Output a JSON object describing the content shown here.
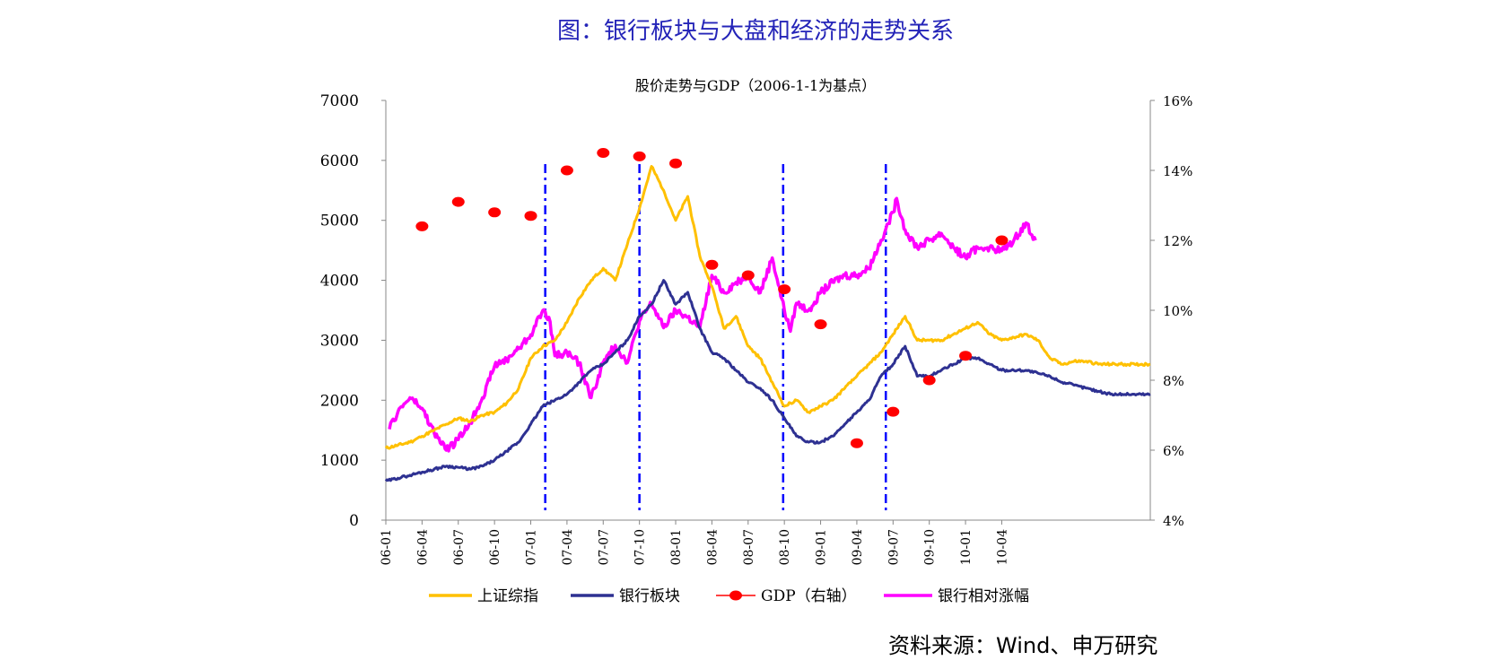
{
  "page": {
    "title": "图：银行板块与大盘和经济的走势关系",
    "source": "资料来源：Wind、申万研究"
  },
  "chart_data": {
    "type": "line",
    "title": "股价走势与GDP（2006-1-1为基点）",
    "y_left": {
      "min": 0,
      "max": 7000,
      "ticks": [
        "0",
        "1000",
        "2000",
        "3000",
        "4000",
        "5000",
        "6000",
        "7000"
      ]
    },
    "y_right": {
      "min": 4,
      "max": 16,
      "ticks": [
        "4%",
        "6%",
        "8%",
        "10%",
        "12%",
        "14%",
        "16%"
      ]
    },
    "x_range": [
      0,
      63.3
    ],
    "x_ticks": [
      {
        "i": 0,
        "label": "06-01"
      },
      {
        "i": 3,
        "label": "06-04"
      },
      {
        "i": 6,
        "label": "06-07"
      },
      {
        "i": 9,
        "label": "06-10"
      },
      {
        "i": 12,
        "label": "07-01"
      },
      {
        "i": 15,
        "label": "07-04"
      },
      {
        "i": 18,
        "label": "07-07"
      },
      {
        "i": 21,
        "label": "07-10"
      },
      {
        "i": 24,
        "label": "08-01"
      },
      {
        "i": 27,
        "label": "08-04"
      },
      {
        "i": 30,
        "label": "08-07"
      },
      {
        "i": 33,
        "label": "08-10"
      },
      {
        "i": 36,
        "label": "09-01"
      },
      {
        "i": 39,
        "label": "09-04"
      },
      {
        "i": 42,
        "label": "09-07"
      },
      {
        "i": 45,
        "label": "09-10"
      },
      {
        "i": 48,
        "label": "10-01"
      },
      {
        "i": 51,
        "label": "10-04"
      }
    ],
    "vlines": [
      13.2,
      21.0,
      32.9,
      41.4
    ],
    "colors": {
      "sh": "#FFC000",
      "bank": "#2E3192",
      "gdp": "#FF0000",
      "rel": "#FF00FF",
      "vline": "#0000FF"
    },
    "series": [
      {
        "key": "sh",
        "name": "上证综指",
        "axis": "left",
        "x": [
          0,
          1,
          2,
          3,
          4,
          5,
          6,
          7,
          8,
          9,
          10,
          11,
          12,
          13,
          14,
          15,
          16,
          17,
          18,
          19,
          20,
          21,
          22,
          23,
          24,
          25,
          26,
          27,
          28,
          29,
          30,
          31,
          32,
          33,
          34,
          35,
          36,
          37,
          38,
          39,
          40,
          41,
          42,
          43,
          44,
          45,
          46,
          47,
          48,
          49,
          50,
          51,
          52,
          53,
          54,
          55,
          56,
          57,
          58,
          59,
          60,
          61,
          62,
          63,
          63.3
        ],
        "values": [
          1200,
          1250,
          1300,
          1400,
          1500,
          1600,
          1700,
          1650,
          1750,
          1800,
          1950,
          2200,
          2700,
          2900,
          3000,
          3300,
          3700,
          4000,
          4200,
          4000,
          4600,
          5200,
          5900,
          5500,
          5000,
          5400,
          4400,
          3900,
          3200,
          3400,
          2900,
          2700,
          2300,
          1900,
          2000,
          1800,
          1900,
          2000,
          2200,
          2400,
          2600,
          2800,
          3100,
          3400,
          3000,
          3000,
          3000,
          3100,
          3200,
          3300,
          3100,
          3000,
          3050,
          3100,
          3000,
          2700,
          2600,
          2650,
          2650,
          2600,
          2600,
          2600,
          2600,
          2600,
          2600
        ]
      },
      {
        "key": "bank",
        "name": "银行板块",
        "axis": "left",
        "x": [
          0,
          1,
          2,
          3,
          4,
          5,
          6,
          7,
          8,
          9,
          10,
          11,
          12,
          13,
          14,
          15,
          16,
          17,
          18,
          19,
          20,
          21,
          22,
          23,
          24,
          25,
          26,
          27,
          28,
          29,
          30,
          31,
          32,
          33,
          34,
          35,
          36,
          37,
          38,
          39,
          40,
          41,
          42,
          43,
          44,
          45,
          46,
          47,
          48,
          49,
          50,
          51,
          52,
          53,
          54,
          55,
          56,
          57,
          58,
          59,
          60,
          61,
          62,
          63,
          63.3
        ],
        "values": [
          650,
          700,
          750,
          800,
          850,
          900,
          880,
          850,
          900,
          1000,
          1150,
          1300,
          1600,
          1900,
          2000,
          2100,
          2300,
          2500,
          2600,
          2800,
          3000,
          3400,
          3600,
          4000,
          3600,
          3800,
          3200,
          2800,
          2700,
          2500,
          2300,
          2200,
          2000,
          1700,
          1400,
          1300,
          1300,
          1400,
          1600,
          1800,
          2000,
          2400,
          2600,
          2900,
          2400,
          2400,
          2500,
          2600,
          2700,
          2700,
          2600,
          2500,
          2500,
          2500,
          2450,
          2400,
          2300,
          2250,
          2200,
          2150,
          2100,
          2100,
          2100,
          2100,
          2100
        ]
      },
      {
        "key": "rel",
        "name": "银行相对涨幅",
        "axis": "right",
        "x": [
          0.3,
          1,
          2,
          3,
          4,
          5,
          6,
          7,
          8,
          9,
          10,
          11,
          12,
          13,
          13.5,
          14,
          15,
          16,
          17,
          18,
          19,
          20,
          21,
          22,
          23,
          24,
          25,
          26,
          27,
          28,
          29,
          30,
          31,
          32,
          33,
          33.5,
          34,
          35,
          36,
          37,
          38,
          39,
          40,
          41,
          42,
          42.3,
          43,
          44,
          45,
          46,
          47,
          48,
          49,
          50,
          51,
          52,
          53,
          53.8
        ],
        "values": [
          6.6,
          7.1,
          7.5,
          7.2,
          6.5,
          6.0,
          6.3,
          6.8,
          7.5,
          8.4,
          8.6,
          8.9,
          9.3,
          10.0,
          9.8,
          8.7,
          8.8,
          8.5,
          7.5,
          8.5,
          9.0,
          8.5,
          9.7,
          10.2,
          9.5,
          10.0,
          9.8,
          9.5,
          11.0,
          10.5,
          10.8,
          11.0,
          10.5,
          11.5,
          10.0,
          9.4,
          10.2,
          10.0,
          10.5,
          10.8,
          11.0,
          11.0,
          11.2,
          12.0,
          12.8,
          13.2,
          12.3,
          11.8,
          12.0,
          12.2,
          11.8,
          11.5,
          11.8,
          11.8,
          11.7,
          12.0,
          12.5,
          12.0
        ]
      },
      {
        "key": "gdp",
        "name": "GDP（右轴）",
        "axis": "right",
        "x": [
          3,
          6,
          9,
          12,
          15,
          18,
          21,
          24,
          27,
          30,
          33,
          36,
          39,
          42,
          45,
          48,
          51
        ],
        "values": [
          12.4,
          13.1,
          12.8,
          12.7,
          14.0,
          14.5,
          14.4,
          14.2,
          11.3,
          11.0,
          10.6,
          9.6,
          6.2,
          7.1,
          8.0,
          8.7,
          12.0
        ]
      }
    ],
    "legend": {
      "position": "bottom",
      "entries": [
        "上证综指",
        "银行板块",
        "GDP（右轴）",
        "银行相对涨幅"
      ]
    }
  }
}
